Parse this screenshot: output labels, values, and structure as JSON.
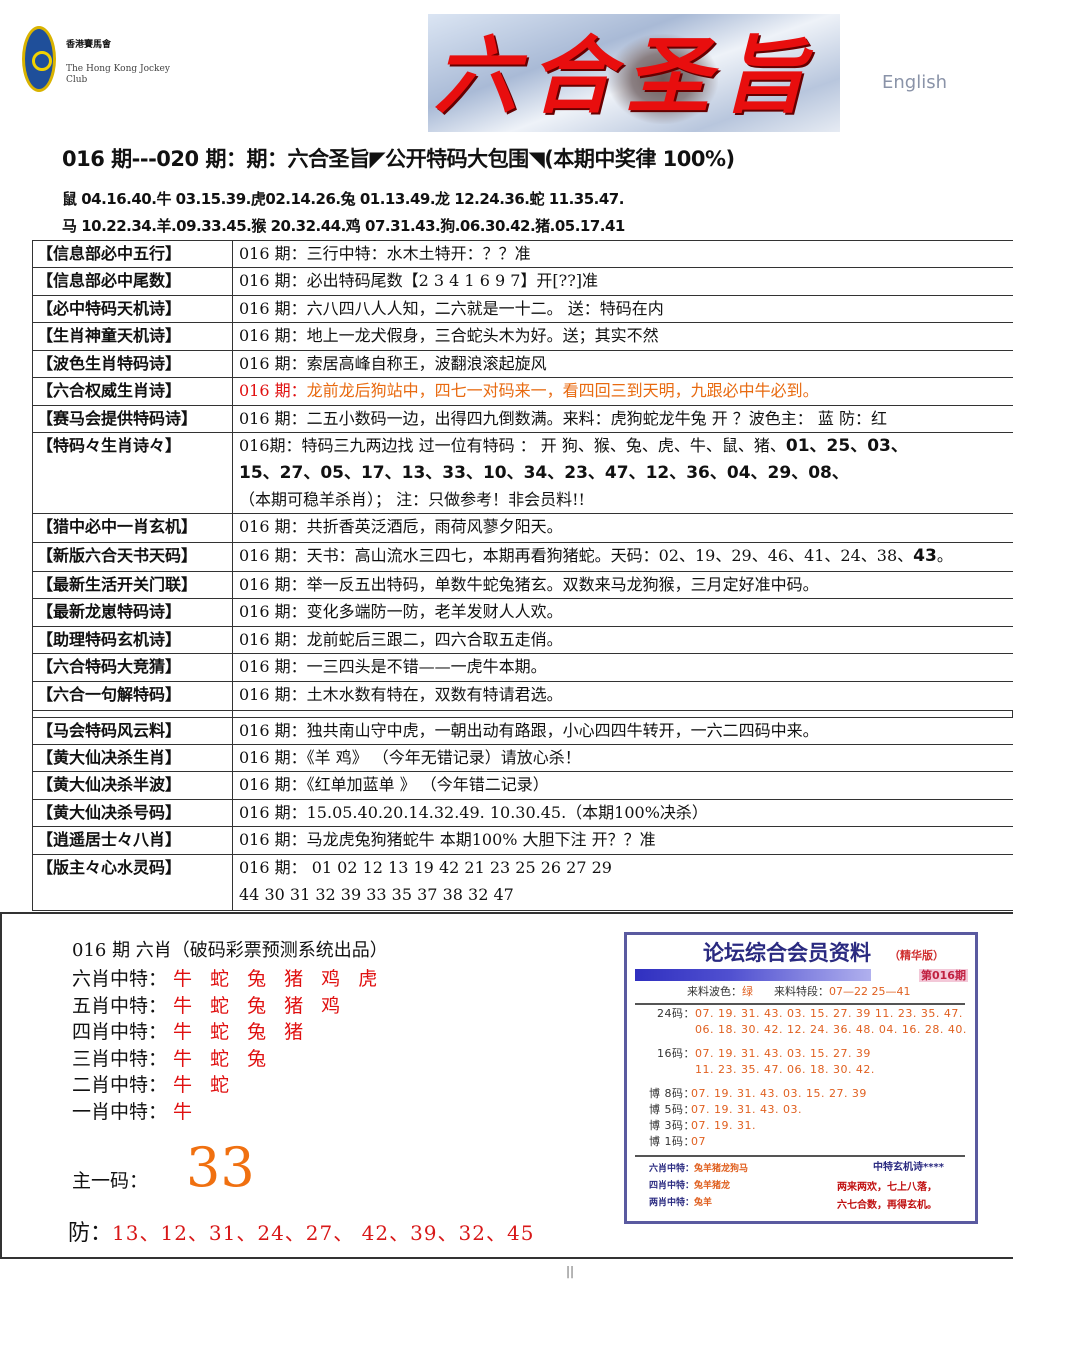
{
  "header": {
    "logo_cn": "香港賽馬會",
    "logo_en": "The Hong Kong Jockey Club",
    "banner_title": "六合圣旨",
    "english_link": "English"
  },
  "headline": "016 期---020 期：期：六合圣旨◤公开特码大包围◥(本期中奖律 100%)",
  "zodiac_lines": [
    "鼠 04.16.40.牛 03.15.39.虎02.14.26.兔 01.13.49.龙 12.24.36.蛇 11.35.47.",
    "马 10.22.34.羊.09.33.45.猴 20.32.44.鸡 07.31.43.狗.06.30.42.猪.05.17.41"
  ],
  "table_rows": [
    {
      "label": "【信息部必中五行】",
      "parts": [
        {
          "t": "016 期：三行中特：水木土特开：？？准"
        }
      ]
    },
    {
      "label": "【信息部必中尾数】",
      "parts": [
        {
          "t": "016 期：必出特码尾数【2 3 4 1 6 9 7】开[??]准"
        }
      ]
    },
    {
      "label": "【必中特码天机诗】",
      "parts": [
        {
          "t": "016 期：六八四八人人知，二六就是一十二。 送：特码在内"
        }
      ]
    },
    {
      "label": "【生肖神童天机诗】",
      "parts": [
        {
          "t": "016 期：地上一龙犬假身，三合蛇头木为好。送；其实不然"
        }
      ]
    },
    {
      "label": "【波色生肖特码诗】",
      "parts": [
        {
          "t": "016 期：索居高峰自称王，波翻浪滚起旋风"
        }
      ]
    },
    {
      "label": "【六合权威生肖诗】",
      "parts": [
        {
          "t": "016 期：",
          "c": "red"
        },
        {
          "t": "龙前龙后狗站中，四七一对码来一，看四回三到天明，九跟必中牛必到。",
          "c": "orange"
        }
      ]
    },
    {
      "label": "【赛马会提供特码诗】",
      "parts": [
        {
          "t": "016  期：二五小数码一边，出得四九倒数满。来料：虎狗蛇龙牛兔 开 ？波色主： 蓝  防：红"
        }
      ]
    },
    {
      "label": "【特码々生肖诗々】",
      "parts": [
        {
          "t": "016期：特码三九两边找   过一位有特码 ： 开 狗、猴、兔、虎、牛、鼠、猪、"
        },
        {
          "t": "01、25、03、",
          "c": "bnum"
        },
        {
          "br": true,
          "t": "15、27、05、17、13、33、10、34、23、47、12、36、04、29、08、",
          "c": "bnum"
        },
        {
          "br": true,
          "t": "（本期可稳羊杀肖）； 注：只做参考！非会员料!!"
        }
      ]
    },
    {
      "label": "【猎中必中一肖玄机】",
      "parts": [
        {
          "t": "016 期：共折香英泛酒卮，雨荷风蓼夕阳天。"
        }
      ]
    },
    {
      "label": "【新版六合天书天码】",
      "parts": [
        {
          "t": "016 期：天书：高山流水三四七，本期再看狗猪蛇。天码：02、19、29、46、41、24、38、"
        },
        {
          "t": "43",
          "c": "bnum"
        },
        {
          "t": "。"
        }
      ]
    },
    {
      "label": "【最新生活开关门联】",
      "parts": [
        {
          "t": "016 期：举一反五出特码，单数牛蛇兔猪玄。双数来马龙狗猴，三月定好准中码。"
        }
      ]
    },
    {
      "label": "【最新龙崽特码诗】",
      "parts": [
        {
          "t": "016 期：变化多端防一防，老羊发财人人欢。"
        }
      ]
    },
    {
      "label": "【助理特码玄机诗】",
      "parts": [
        {
          "t": "016 期：龙前蛇后三跟二，四六合取五走俏。"
        }
      ]
    },
    {
      "label": "【六合特码大竞猜】",
      "parts": [
        {
          "t": "016 期：一三四头是不错——一虎牛本期。"
        }
      ]
    },
    {
      "label": "【六合一句解特码】",
      "parts": [
        {
          "t": "016 期：土木水数有特在，双数有特请君选。"
        }
      ]
    },
    {
      "gap": true
    },
    {
      "label": "【马会特码风云料】",
      "parts": [
        {
          "t": "016 期：独共南山守中虎，一朝出动有路跟，小心四四牛转开，一六二四码中来。"
        }
      ]
    },
    {
      "label": "【黄大仙决杀生肖】",
      "parts": [
        {
          "t": "016 期：《羊 鸡》    （今年无错记录）请放心杀！"
        }
      ]
    },
    {
      "label": "【黄大仙决杀半波】",
      "parts": [
        {
          "t": "016 期：《红单加蓝单 》      （今年错二记录）"
        }
      ]
    },
    {
      "label": "【黄大仙决杀号码】",
      "parts": [
        {
          "t": "016  期：15.05.40.20.14.32.49.  10.30.45.（本期100%决杀）"
        }
      ]
    },
    {
      "label": "【逍遥居士々八肖】",
      "parts": [
        {
          "t": "016  期：马龙虎兔狗猪蛇牛 本期100% 大胆下注        开？？准"
        }
      ]
    },
    {
      "label": "【版主々心水灵码】",
      "parts": [
        {
          "t": "016 期：  01  02  12  13  19  42  21  23  25  26  27  29"
        },
        {
          "br": true,
          "t": "   44  30  31  32  39  33  35  37  38  32  47"
        }
      ]
    }
  ],
  "lower": {
    "header": "016 期        六肖（破码彩票预测系统出品）",
    "xiao": [
      {
        "label": "六肖中特：",
        "value": "牛 蛇 兔 猪 鸡 虎"
      },
      {
        "label": "五肖中特：",
        "value": "牛 蛇 兔 猪 鸡"
      },
      {
        "label": "四肖中特：",
        "value": "牛 蛇 兔 猪"
      },
      {
        "label": "三肖中特：",
        "value": "牛 蛇 兔"
      },
      {
        "label": "二肖中特：",
        "value": "牛 蛇"
      },
      {
        "label": "一肖中特：",
        "value": "牛"
      }
    ],
    "main_label": "主一码：",
    "main_number": "33",
    "fang_label": "防：",
    "fang_values": "13、12、31、24、27、 42、39、32、45"
  },
  "panel": {
    "title": "论坛综合会员资料",
    "edition": "（精华版）",
    "issue": "第016期",
    "source_label": "来料波色：",
    "source_value": "绿",
    "segment_label": "来料特段：",
    "segment_value": "07—22  25—41",
    "rows": [
      {
        "label": "24码：",
        "value": "07. 19. 31. 43. 03. 15. 27. 39  11. 23. 35. 47."
      },
      {
        "label": "",
        "value": "06. 18. 30. 42. 12. 24. 36. 48. 04. 16. 28. 40."
      },
      {
        "label": "16码：",
        "value": "07. 19. 31. 43. 03. 15. 27. 39"
      },
      {
        "label": "",
        "value": "11. 23. 35. 47. 06. 18. 30. 42."
      },
      {
        "label": "博 8码：",
        "value": "07. 19. 31. 43. 03. 15. 27. 39"
      },
      {
        "label": "博 5码：",
        "value": "07. 19. 31. 43. 03."
      },
      {
        "label": "博 3码：",
        "value": "07. 19. 31."
      },
      {
        "label": "博 1码：",
        "value": "07"
      }
    ],
    "footer": [
      {
        "label": "六肖中特：",
        "value": "兔羊猪龙狗马"
      },
      {
        "label": "四肖中特：",
        "value": "兔羊猪龙"
      },
      {
        "label": "两肖中特：",
        "value": "兔羊"
      }
    ],
    "poem_title": "中特玄机诗****",
    "poem_lines": [
      "两来两欢，七上八落，",
      "六七合数，再得玄机。"
    ],
    "colors": {
      "title": "#2a2a80",
      "numbers": "#e06020",
      "poem": "#c01010"
    }
  },
  "colors": {
    "banner_title": "#e80e0e",
    "highlight_red": "#e01010",
    "highlight_orange": "#e86a10",
    "main_number": "#f07010"
  }
}
